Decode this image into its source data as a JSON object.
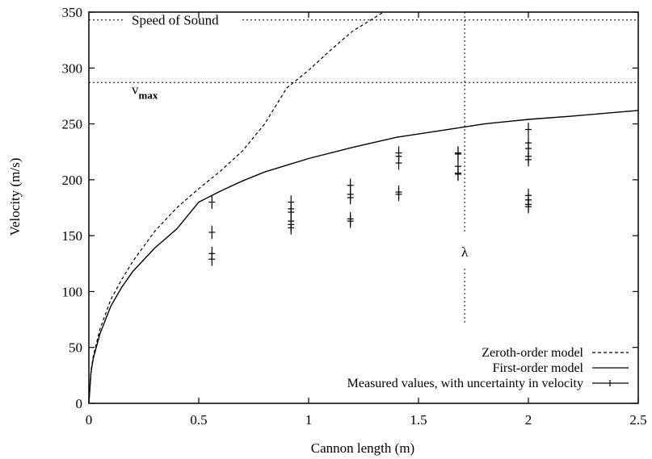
{
  "chart_data": {
    "type": "line",
    "xlabel": "Cannon length (m)",
    "ylabel": "Velocity (m/s)",
    "xlim": [
      0,
      2.5
    ],
    "ylim": [
      0,
      350
    ],
    "x_ticks": [
      "0",
      "0.5",
      "1",
      "1.5",
      "2",
      "2.5"
    ],
    "y_ticks": [
      "0",
      "50",
      "100",
      "150",
      "200",
      "250",
      "300",
      "350"
    ],
    "grid": false,
    "legend_position": "bottom-right",
    "reference_lines": [
      {
        "label": "Speed of Sound",
        "y": 343
      },
      {
        "label_main": "v",
        "label_sub": "max",
        "y": 287
      }
    ],
    "vertical_marker": {
      "label": "λ",
      "x": 1.71
    },
    "series": [
      {
        "name": "Zeroth-order model",
        "style": "dashed",
        "x": [
          0.0,
          0.01,
          0.02,
          0.05,
          0.1,
          0.15,
          0.2,
          0.3,
          0.4,
          0.5,
          0.6,
          0.7,
          0.8,
          0.9,
          1.0,
          1.1,
          1.2,
          1.3,
          1.34
        ],
        "y": [
          0,
          30,
          42,
          66,
          93,
          111,
          127,
          154,
          175,
          192,
          208,
          226,
          250,
          282,
          298,
          316,
          333,
          345,
          350
        ]
      },
      {
        "name": "First-order model",
        "style": "solid",
        "x": [
          0.0,
          0.01,
          0.02,
          0.05,
          0.1,
          0.15,
          0.2,
          0.3,
          0.4,
          0.5,
          0.6,
          0.7,
          0.8,
          0.9,
          1.0,
          1.2,
          1.4,
          1.6,
          1.8,
          2.0,
          2.2,
          2.5
        ],
        "y": [
          0,
          28,
          40,
          62,
          87,
          104,
          118,
          139,
          156,
          180,
          190,
          199,
          207,
          213,
          219,
          229,
          238,
          244,
          250,
          254,
          257,
          262
        ]
      },
      {
        "name": "Measured values, with uncertainty in velocity",
        "style": "errorbar",
        "x": [
          0.56,
          0.56,
          0.56,
          0.56,
          0.92,
          0.92,
          0.92,
          0.92,
          0.92,
          0.92,
          1.19,
          1.19,
          1.19,
          1.19,
          1.19,
          1.41,
          1.41,
          1.41,
          1.41,
          1.41,
          1.68,
          1.68,
          1.68,
          1.68,
          1.68,
          2.0,
          2.0,
          2.0,
          2.0,
          2.0,
          2.0,
          2.0,
          2.0,
          2.0
        ],
        "y": [
          180,
          153,
          134,
          129,
          180,
          174,
          171,
          163,
          160,
          157,
          195,
          187,
          184,
          165,
          163,
          224,
          221,
          215,
          189,
          187,
          224,
          223,
          212,
          206,
          205,
          245,
          233,
          228,
          221,
          218,
          186,
          182,
          178,
          176
        ],
        "error": 6
      }
    ]
  }
}
